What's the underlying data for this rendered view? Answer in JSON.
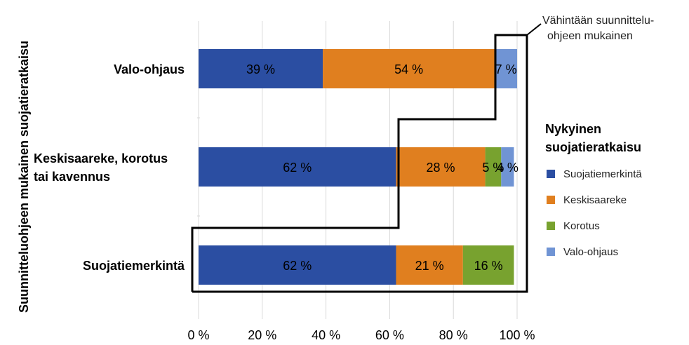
{
  "chart_data": {
    "type": "bar",
    "orientation": "horizontal",
    "stacked": "percent",
    "categories": [
      "Valo-ohjaus",
      "Keskisaareke, korotus tai kavennus",
      "Suojatiemerkintä"
    ],
    "category_lines": [
      [
        "Valo-ohjaus"
      ],
      [
        "Keskisaareke, korotus",
        "tai kavennus"
      ],
      [
        "Suojatiemerkintä"
      ]
    ],
    "series": [
      {
        "name": "Suojatiemerkintä",
        "color": "#2b4ea2",
        "values": [
          39,
          62,
          62
        ],
        "labels": [
          "39 %",
          "62 %",
          "62 %"
        ]
      },
      {
        "name": "Keskisaareke",
        "color": "#e07f1f",
        "values": [
          54,
          28,
          21
        ],
        "labels": [
          "54 %",
          "28 %",
          "21 %"
        ]
      },
      {
        "name": "Korotus",
        "color": "#78a22f",
        "values": [
          0,
          5,
          16
        ],
        "labels": [
          "",
          "5 %",
          "16 %"
        ]
      },
      {
        "name": "Valo-ohjaus",
        "color": "#7094d4",
        "values": [
          7,
          4,
          0
        ],
        "labels": [
          "7 %",
          "4 %",
          ""
        ]
      }
    ],
    "xlim": [
      0,
      100
    ],
    "xticks": [
      "0 %",
      "20 %",
      "40 %",
      "60 %",
      "80 %",
      "100 %"
    ],
    "ylabel": "Suunnitteluohjeen mukainen suojatieratkaisu",
    "grid": "vertical",
    "legend": {
      "title_lines": [
        "Nykyinen",
        "suojatieratkaisu"
      ],
      "position": "right"
    },
    "annotation": {
      "lines": [
        "Vähintään suunnittelu-",
        "ohjeen mukainen"
      ]
    }
  }
}
